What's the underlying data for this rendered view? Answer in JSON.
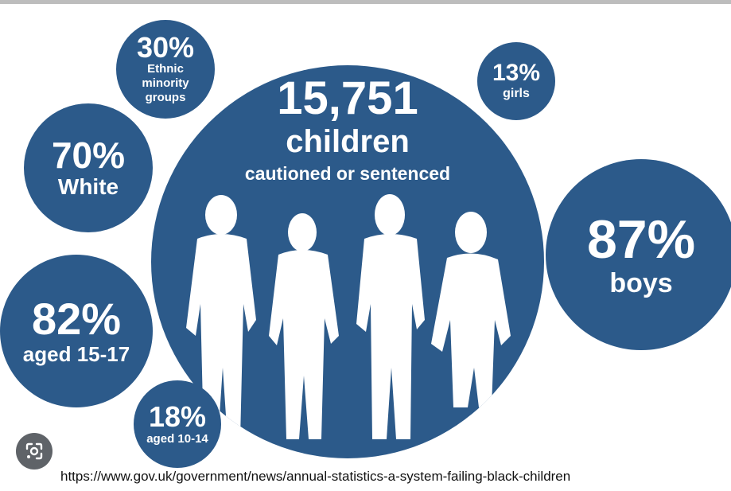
{
  "main": {
    "count": "15,751",
    "noun": "children",
    "subtitle": "cautioned or sentenced"
  },
  "stats": {
    "ethnic_minority": {
      "value": "30%",
      "label_line1": "Ethnic",
      "label_line2": "minority",
      "label_line3": "groups"
    },
    "white": {
      "value": "70%",
      "label": "White"
    },
    "aged_15_17": {
      "value": "82%",
      "label": "aged 15-17"
    },
    "aged_10_14": {
      "value": "18%",
      "label": "aged 10-14"
    },
    "girls": {
      "value": "13%",
      "label": "girls"
    },
    "boys": {
      "value": "87%",
      "label": "boys"
    }
  },
  "source_url": "https://www.gov.uk/government/news/annual-statistics-a-system-failing-black-children",
  "icons": {
    "lens": "google-lens-icon"
  },
  "colors": {
    "bubble": "#2c5a8a",
    "text": "#ffffff",
    "silhouette": "#ffffff"
  }
}
